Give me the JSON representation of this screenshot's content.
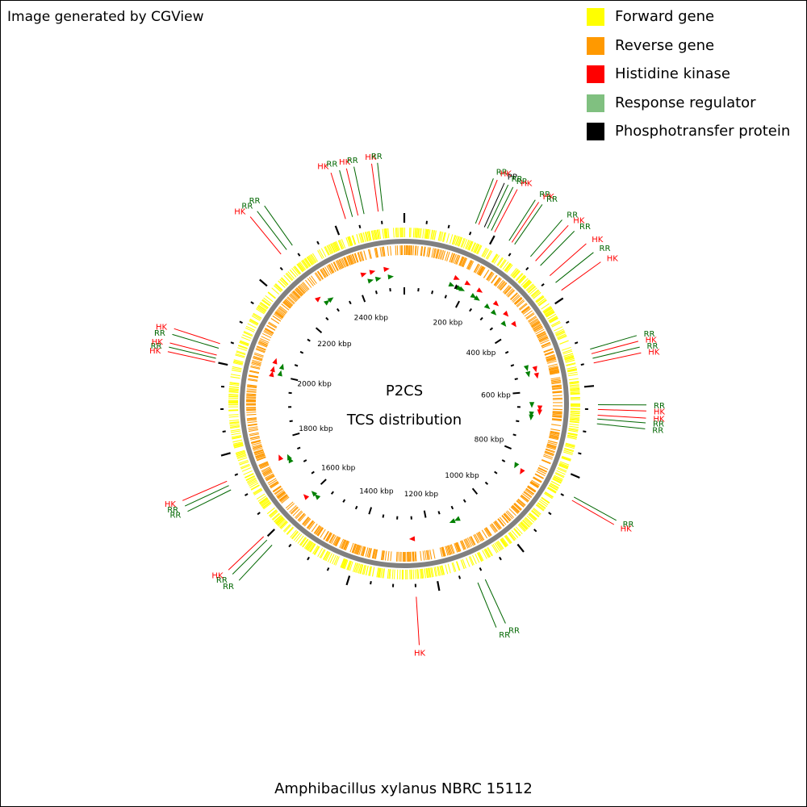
{
  "credit": "Image generated by CGView",
  "caption": "Amphibacillus xylanus NBRC 15112",
  "center": {
    "title": "P2CS",
    "subtitle": "TCS distribution"
  },
  "colors": {
    "forward": "#ffff00",
    "reverse": "#ff9900",
    "hk": "#ff0000",
    "rr": "#006600",
    "rr_triangle": "#008000",
    "rr_swatch": "#80c080",
    "pp": "#000000",
    "backbone": "#808080"
  },
  "legend": [
    {
      "label": "Forward gene",
      "color": "#ffff00"
    },
    {
      "label": "Reverse gene",
      "color": "#ff9900"
    },
    {
      "label": "Histidine kinase",
      "color": "#ff0000"
    },
    {
      "label": "Response regulator",
      "color": "#80c080"
    },
    {
      "label": "Phosphotransfer protein",
      "color": "#000000"
    }
  ],
  "genome_kbp": 2550,
  "kbp_labels": [
    {
      "kbp": 200,
      "text": "200 kbp"
    },
    {
      "kbp": 400,
      "text": "400 kbp"
    },
    {
      "kbp": 600,
      "text": "600 kbp"
    },
    {
      "kbp": 800,
      "text": "800 kbp"
    },
    {
      "kbp": 1000,
      "text": "1000 kbp"
    },
    {
      "kbp": 1200,
      "text": "1200 kbp"
    },
    {
      "kbp": 1400,
      "text": "1400 kbp"
    },
    {
      "kbp": 1600,
      "text": "1600 kbp"
    },
    {
      "kbp": 1800,
      "text": "1800 kbp"
    },
    {
      "kbp": 2000,
      "text": "2000 kbp"
    },
    {
      "kbp": 2200,
      "text": "2200 kbp"
    },
    {
      "kbp": 2400,
      "text": "2400 kbp"
    }
  ],
  "features": [
    {
      "kbp": 153,
      "type": "RR"
    },
    {
      "kbp": 160,
      "type": "HK"
    },
    {
      "kbp": 173,
      "type": "PP"
    },
    {
      "kbp": 180,
      "type": "RR"
    },
    {
      "kbp": 189,
      "type": "RR"
    },
    {
      "kbp": 197,
      "type": "HK"
    },
    {
      "kbp": 232,
      "type": "RR"
    },
    {
      "kbp": 239,
      "type": "HK"
    },
    {
      "kbp": 246,
      "type": "RR"
    },
    {
      "kbp": 288,
      "type": "RR"
    },
    {
      "kbp": 302,
      "type": "HK"
    },
    {
      "kbp": 316,
      "type": "RR"
    },
    {
      "kbp": 345,
      "type": "HK"
    },
    {
      "kbp": 364,
      "type": "RR"
    },
    {
      "kbp": 384,
      "type": "HK"
    },
    {
      "kbp": 522,
      "type": "RR"
    },
    {
      "kbp": 532,
      "type": "HK"
    },
    {
      "kbp": 542,
      "type": "RR"
    },
    {
      "kbp": 552,
      "type": "HK"
    },
    {
      "kbp": 640,
      "type": "RR"
    },
    {
      "kbp": 650,
      "type": "HK"
    },
    {
      "kbp": 662,
      "type": "HK"
    },
    {
      "kbp": 670,
      "type": "RR"
    },
    {
      "kbp": 680,
      "type": "RR"
    },
    {
      "kbp": 842,
      "type": "RR"
    },
    {
      "kbp": 850,
      "type": "HK"
    },
    {
      "kbp": 1100,
      "type": "RR"
    },
    {
      "kbp": 1117,
      "type": "RR"
    },
    {
      "kbp": 1250,
      "type": "HK"
    },
    {
      "kbp": 1580,
      "type": "RR"
    },
    {
      "kbp": 1595,
      "type": "RR"
    },
    {
      "kbp": 1605,
      "type": "HK"
    },
    {
      "kbp": 1725,
      "type": "RR"
    },
    {
      "kbp": 1735,
      "type": "RR"
    },
    {
      "kbp": 1745,
      "type": "HK"
    },
    {
      "kbp": 2000,
      "type": "HK"
    },
    {
      "kbp": 2008,
      "type": "RR"
    },
    {
      "kbp": 2015,
      "type": "HK"
    },
    {
      "kbp": 2030,
      "type": "RR"
    },
    {
      "kbp": 2040,
      "type": "HK"
    },
    {
      "kbp": 2270,
      "type": "HK"
    },
    {
      "kbp": 2285,
      "type": "RR"
    },
    {
      "kbp": 2300,
      "type": "RR"
    },
    {
      "kbp": 2425,
      "type": "HK"
    },
    {
      "kbp": 2440,
      "type": "RR"
    },
    {
      "kbp": 2452,
      "type": "HK"
    },
    {
      "kbp": 2465,
      "type": "RR"
    },
    {
      "kbp": 2495,
      "type": "HK"
    },
    {
      "kbp": 2505,
      "type": "RR"
    }
  ]
}
